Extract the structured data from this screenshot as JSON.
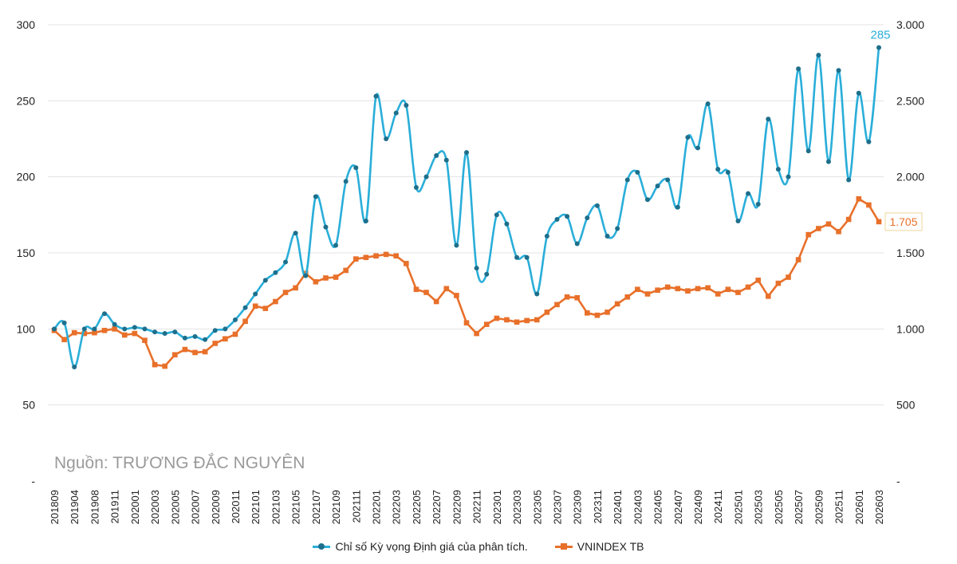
{
  "colors": {
    "series1": "#2aaed9",
    "series2": "#e8702a",
    "grid": "#e3e3e3",
    "marker1": "#1d6f8c"
  },
  "source_text": "Nguồn: TRƯƠNG ĐẮC NGUYÊN",
  "chart_data": {
    "type": "line",
    "left_axis": {
      "ticks": [
        "-",
        "50",
        "100",
        "150",
        "200",
        "250",
        "300"
      ],
      "ylim": [
        0,
        300
      ]
    },
    "right_axis": {
      "ticks": [
        "-",
        "500",
        "1.000",
        "1.500",
        "2.000",
        "2.500",
        "3.000"
      ],
      "ylim": [
        0,
        3000
      ]
    },
    "x_tick_labels": [
      "201809",
      "201904",
      "201908",
      "201911",
      "202001",
      "202003",
      "202005",
      "202007",
      "202009",
      "202011",
      "202101",
      "202103",
      "202105",
      "202107",
      "202109",
      "202111",
      "202201",
      "202203",
      "202205",
      "202207",
      "202209",
      "202211",
      "202301",
      "202303",
      "202305",
      "202307",
      "202309",
      "202311",
      "202401",
      "202403",
      "202405",
      "202407",
      "202409",
      "202411",
      "202501",
      "202503",
      "202505",
      "202507",
      "202509",
      "202511",
      "202601",
      "202603"
    ],
    "series": [
      {
        "name": "Chỉ số Kỳ vọng Định giá của phân tích.",
        "axis": "left",
        "end_label": "285",
        "values": [
          100,
          104,
          75,
          100,
          100,
          110,
          103,
          100,
          101,
          100,
          98,
          97,
          98,
          94,
          95,
          93,
          99,
          100,
          106,
          114,
          123,
          132,
          137,
          144,
          163,
          135,
          187,
          167,
          155,
          197,
          206,
          171,
          253,
          225,
          242,
          247,
          193,
          200,
          214,
          211,
          155,
          216,
          140,
          136,
          175,
          169,
          147,
          147,
          123,
          161,
          172,
          174,
          156,
          173,
          181,
          161,
          166,
          198,
          203,
          185,
          194,
          198,
          180,
          226,
          219,
          248,
          205,
          203,
          171,
          189,
          182,
          238,
          205,
          200,
          271,
          217,
          280,
          210,
          270,
          198,
          255,
          223,
          285
        ]
      },
      {
        "name": "VNINDEX TB",
        "axis": "right",
        "end_label": "1.705",
        "values": [
          990,
          930,
          975,
          970,
          975,
          990,
          1000,
          960,
          970,
          925,
          765,
          755,
          830,
          865,
          845,
          850,
          905,
          935,
          965,
          1050,
          1150,
          1135,
          1180,
          1240,
          1270,
          1365,
          1310,
          1335,
          1340,
          1385,
          1460,
          1470,
          1480,
          1490,
          1480,
          1430,
          1260,
          1240,
          1180,
          1265,
          1220,
          1040,
          970,
          1030,
          1070,
          1060,
          1045,
          1055,
          1060,
          1110,
          1160,
          1210,
          1205,
          1105,
          1090,
          1110,
          1165,
          1210,
          1260,
          1230,
          1255,
          1275,
          1265,
          1250,
          1265,
          1270,
          1230,
          1260,
          1240,
          1275,
          1320,
          1215,
          1300,
          1340,
          1455,
          1620,
          1660,
          1690,
          1640,
          1720,
          1855,
          1815,
          1705
        ]
      }
    ]
  }
}
